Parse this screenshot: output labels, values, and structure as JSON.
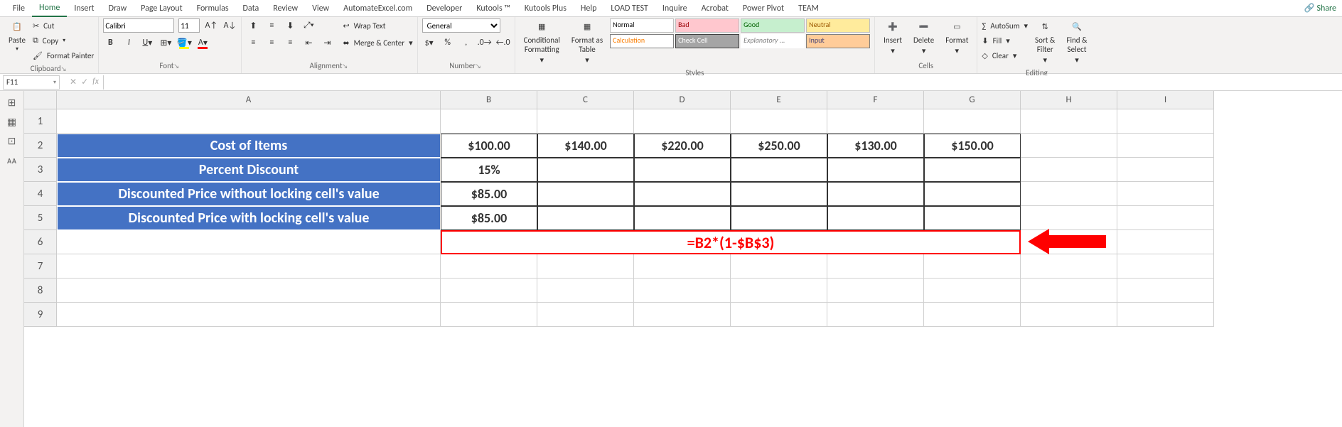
{
  "tabs": [
    "File",
    "Home",
    "Insert",
    "Draw",
    "Page Layout",
    "Formulas",
    "Data",
    "Review",
    "View",
    "AutomateExcel.com",
    "Developer",
    "Kutools ™",
    "Kutools Plus",
    "Help",
    "LOAD TEST",
    "Inquire",
    "Acrobat",
    "Power Pivot",
    "TEAM"
  ],
  "active_tab": 1,
  "share_label": "Share",
  "clipboard": {
    "paste": "Paste",
    "cut": "Cut",
    "copy": "Copy",
    "fp": "Format Painter",
    "label": "Clipboard"
  },
  "font": {
    "name": "Calibri",
    "size": "11",
    "label": "Font"
  },
  "alignment": {
    "wrap": "Wrap Text",
    "merge": "Merge & Center",
    "label": "Alignment"
  },
  "number": {
    "format": "General",
    "label": "Number"
  },
  "styles": {
    "cond": "Conditional\nFormatting",
    "fat": "Format as\nTable",
    "label": "Styles",
    "gallery": [
      {
        "t": "Normal",
        "bg": "#ffffff",
        "c": "#000",
        "bd": "#bfbfbf"
      },
      {
        "t": "Bad",
        "bg": "#ffc7ce",
        "c": "#9c0006",
        "bd": "#bfbfbf"
      },
      {
        "t": "Good",
        "bg": "#c6efce",
        "c": "#006100",
        "bd": "#bfbfbf"
      },
      {
        "t": "Neutral",
        "bg": "#ffeb9c",
        "c": "#9c5700",
        "bd": "#bfbfbf"
      },
      {
        "t": "Calculation",
        "bg": "#ffffff",
        "c": "#fa7d00",
        "bd": "#7f7f7f"
      },
      {
        "t": "Check Cell",
        "bg": "#a5a5a5",
        "c": "#ffffff",
        "bd": "#3f3f3f"
      },
      {
        "t": "Explanatory ...",
        "bg": "#ffffff",
        "c": "#7f7f7f",
        "bd": "#ffffff",
        "i": true
      },
      {
        "t": "Input",
        "bg": "#ffcc99",
        "c": "#3f3f76",
        "bd": "#7f7f7f"
      }
    ]
  },
  "cells": {
    "insert": "Insert",
    "delete": "Delete",
    "format": "Format",
    "label": "Cells"
  },
  "editing": {
    "sum": "AutoSum",
    "fill": "Fill",
    "clear": "Clear",
    "sort": "Sort &\nFilter",
    "find": "Find &\nSelect",
    "label": "Editing"
  },
  "name_box": "F11",
  "columns": [
    "A",
    "B",
    "C",
    "D",
    "E",
    "F",
    "G",
    "H",
    "I"
  ],
  "col_widths": {
    "A": 540,
    "B": 136,
    "C": 136,
    "D": 136,
    "E": 136,
    "F": 136,
    "G": 136,
    "H": 136,
    "I": 136
  },
  "row_labels": [
    "1",
    "2",
    "3",
    "4",
    "5",
    "6",
    "7",
    "8",
    "9"
  ],
  "table": {
    "r2": {
      "label": "Cost of Items",
      "vals": [
        "$100.00",
        "$140.00",
        "$220.00",
        "$250.00",
        "$130.00",
        "$150.00"
      ]
    },
    "r3": {
      "label": "Percent Discount",
      "vals": [
        "15%",
        "",
        "",
        "",
        "",
        ""
      ]
    },
    "r4": {
      "label": "Discounted Price without locking cell's value",
      "vals": [
        "$85.00",
        "",
        "",
        "",
        "",
        ""
      ]
    },
    "r5": {
      "label": "Discounted Price with locking cell's value",
      "vals": [
        "$85.00",
        "",
        "",
        "",
        "",
        ""
      ]
    }
  },
  "formula_callout": "=B2*(1-$B$3)",
  "colors": {
    "header_bg": "#4472c4",
    "header_fg": "#ffffff",
    "formula_red": "#ff0000"
  }
}
